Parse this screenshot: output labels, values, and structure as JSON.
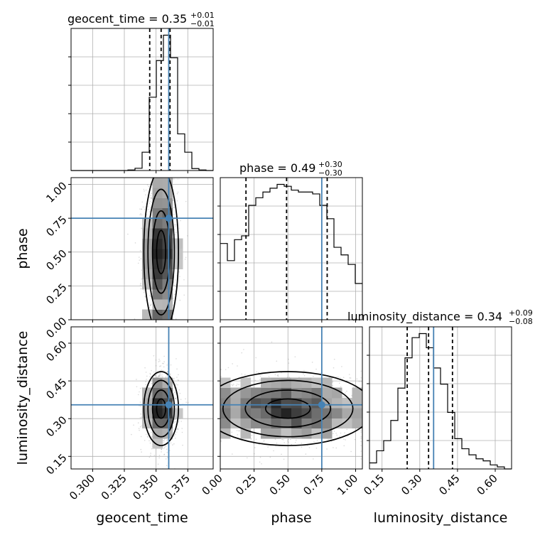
{
  "chart_data": {
    "type": "corner",
    "parameters": [
      {
        "name": "geocent_time",
        "axis_label": "geocent_time",
        "range": [
          0.283,
          0.395
        ],
        "ticks": [
          0.3,
          0.325,
          0.35,
          0.375
        ],
        "tick_labels": [
          "0.300",
          "0.325",
          "0.350",
          "0.375"
        ],
        "truth": 0.36,
        "quantiles": [
          0.345,
          0.354,
          0.361
        ],
        "title": {
          "prefix": "geocent_time = 0.35",
          "plus": "+0.01",
          "minus": "−0.01"
        },
        "histogram": {
          "bin_edges": [
            0.283,
            0.2886,
            0.2942,
            0.2998,
            0.3054,
            0.311,
            0.3166,
            0.3222,
            0.3278,
            0.3334,
            0.339,
            0.3446,
            0.3502,
            0.3558,
            0.3614,
            0.367,
            0.3726,
            0.3782,
            0.3838,
            0.3894,
            0.395
          ],
          "heights": [
            0,
            0,
            0,
            0,
            0,
            0,
            0,
            0,
            0.004,
            0.016,
            0.13,
            0.52,
            0.78,
            0.96,
            0.8,
            0.26,
            0.13,
            0.014,
            0.004,
            0
          ]
        }
      },
      {
        "name": "phase",
        "axis_label": "phase",
        "range": [
          0.0,
          1.05
        ],
        "ticks": [
          0.0,
          0.25,
          0.5,
          0.75,
          1.0
        ],
        "tick_labels": [
          "0.00",
          "0.25",
          "0.50",
          "0.75",
          "1.00"
        ],
        "truth": 0.75,
        "quantiles": [
          0.19,
          0.49,
          0.79
        ],
        "title": {
          "prefix": "phase = 0.49",
          "plus": "+0.30",
          "minus": "−0.30"
        },
        "histogram": {
          "bin_edges": [
            0.0,
            0.0525,
            0.105,
            0.1575,
            0.21,
            0.2625,
            0.315,
            0.3675,
            0.42,
            0.4725,
            0.525,
            0.5775,
            0.63,
            0.6825,
            0.735,
            0.7875,
            0.84,
            0.8925,
            0.945,
            0.9975,
            1.05
          ],
          "heights": [
            0.4,
            0.31,
            0.42,
            0.44,
            0.6,
            0.64,
            0.67,
            0.69,
            0.71,
            0.7,
            0.68,
            0.67,
            0.67,
            0.66,
            0.6,
            0.53,
            0.38,
            0.34,
            0.29,
            0.19
          ]
        }
      },
      {
        "name": "luminosity_distance",
        "axis_label": "luminosity_distance",
        "range": [
          0.1,
          0.665
        ],
        "ticks": [
          0.15,
          0.3,
          0.45,
          0.6
        ],
        "tick_labels": [
          "0.15",
          "0.30",
          "0.45",
          "0.60"
        ],
        "truth": 0.355,
        "quantiles": [
          0.25,
          0.335,
          0.43
        ],
        "title": {
          "prefix": "luminosity_distance = 0.34",
          "plus": "+0.09",
          "minus": "−0.08"
        },
        "histogram": {
          "bin_edges": [
            0.1,
            0.12825,
            0.1565,
            0.18475,
            0.213,
            0.24125,
            0.2695,
            0.29775,
            0.326,
            0.35425,
            0.3825,
            0.41075,
            0.439,
            0.46725,
            0.4955,
            0.52375,
            0.552,
            0.58025,
            0.60825,
            0.6365,
            0.665
          ],
          "heights": [
            0.03,
            0.09,
            0.14,
            0.24,
            0.4,
            0.55,
            0.65,
            0.67,
            0.6,
            0.5,
            0.42,
            0.28,
            0.15,
            0.1,
            0.07,
            0.05,
            0.04,
            0.02,
            0.01,
            0
          ]
        }
      }
    ],
    "pairs": [
      {
        "x": "geocent_time",
        "y": "phase",
        "truth_point": [
          0.36,
          0.75
        ]
      },
      {
        "x": "geocent_time",
        "y": "luminosity_distance",
        "truth_point": [
          0.36,
          0.355
        ]
      },
      {
        "x": "phase",
        "y": "luminosity_distance",
        "truth_point": [
          0.75,
          0.355
        ]
      }
    ],
    "colors": {
      "truth": "#4682b4",
      "hist": "#000000",
      "grid": "#b0b0b0"
    },
    "grid": true
  }
}
